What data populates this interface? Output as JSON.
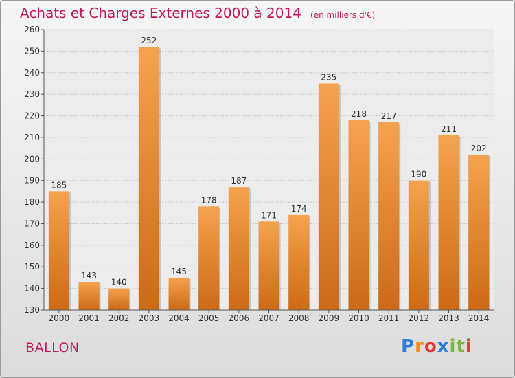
{
  "header": {
    "title": "Achats et Charges Externes 2000 à 2014",
    "subtitle": "(en milliers d'€)"
  },
  "footer": {
    "location": "BALLON",
    "brand": "Proxiti",
    "brand_colors": [
      "#2e7dd7",
      "#f28a1c",
      "#e53935",
      "#2e7dd7",
      "#7cb342",
      "#7cb342",
      "#e53935"
    ]
  },
  "chart_data": {
    "type": "bar",
    "categories": [
      "2000",
      "2001",
      "2002",
      "2003",
      "2004",
      "2005",
      "2006",
      "2007",
      "2008",
      "2009",
      "2010",
      "2011",
      "2012",
      "2013",
      "2014"
    ],
    "values": [
      185,
      143,
      140,
      252,
      145,
      178,
      187,
      171,
      174,
      235,
      218,
      217,
      190,
      211,
      202
    ],
    "ylim": [
      130,
      260
    ],
    "yticks": [
      130,
      140,
      150,
      160,
      170,
      180,
      190,
      200,
      210,
      220,
      230,
      240,
      250,
      260
    ],
    "grid": true,
    "bar_color_top": "#f5a24e",
    "bar_color_bottom": "#cc6a16",
    "title_color": "#c2185b"
  }
}
